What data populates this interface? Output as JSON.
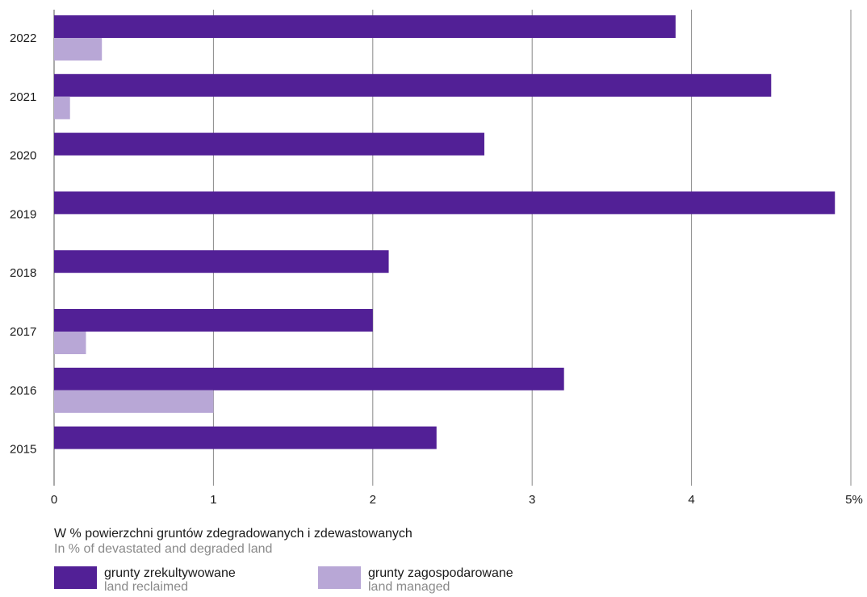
{
  "chart_data": {
    "type": "bar",
    "orientation": "horizontal",
    "categories": [
      "2022",
      "2021",
      "2020",
      "2019",
      "2018",
      "2017",
      "2016",
      "2015"
    ],
    "series": [
      {
        "name": "grunty zrekultywowane / land reclaimed",
        "color": "#522096",
        "values": [
          3.9,
          4.5,
          2.7,
          4.9,
          2.1,
          2.0,
          3.2,
          2.4
        ]
      },
      {
        "name": "grunty zagospodarowane / land managed",
        "color": "#b8a7d6",
        "values": [
          0.3,
          0.1,
          0,
          0,
          0,
          0.2,
          1.0,
          0
        ]
      }
    ],
    "xlim": [
      0,
      5
    ],
    "xticks": [
      "0",
      "1",
      "2",
      "3",
      "4",
      "5%"
    ],
    "grid": true,
    "legend_position": "bottom"
  },
  "caption": {
    "pl": "W % powierzchni gruntów zdegradowanych i zdewastowanych",
    "en": "In % of devastated and degraded land"
  },
  "legend": [
    {
      "pl": "grunty zrekultywowane",
      "en": "land reclaimed",
      "color": "#522096"
    },
    {
      "pl": "grunty zagospodarowane",
      "en": "land managed",
      "color": "#b8a7d6"
    }
  ]
}
